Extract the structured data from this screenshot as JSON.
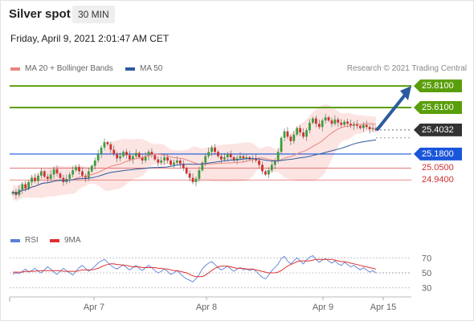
{
  "header": {
    "title": "Silver spot",
    "timeframe": "30 MIN",
    "datetime": "Friday, April 9, 2021 2:01:47 AM CET"
  },
  "legend": {
    "ma20_label": "MA 20 + Bollinger Bands",
    "ma50_label": "MA 50",
    "copyright": "Research © 2021 Trading Central"
  },
  "rsi_legend": {
    "rsi_label": "RSI",
    "ma9_label": "9MA"
  },
  "colors": {
    "target": "#5a9e0b",
    "current": "#333333",
    "pivot": "#1a56db",
    "support": "#e06666",
    "ma20": "#e8867f",
    "ma50": "#2c5a9e",
    "rsi": "#5b7fd6",
    "ma9": "#e03030",
    "bull": "#3b9e3b",
    "bear": "#d03030",
    "arrow": "#2c5a9e"
  },
  "chart_data": {
    "type": "candlestick",
    "title": "Silver spot",
    "timeframe": "30 MIN",
    "price_levels": [
      {
        "label": "25.8100",
        "value": 25.81,
        "kind": "target"
      },
      {
        "label": "25.6100",
        "value": 25.61,
        "kind": "target"
      },
      {
        "label": "25.4032",
        "value": 25.4032,
        "kind": "current"
      },
      {
        "label": "25.1800",
        "value": 25.18,
        "kind": "pivot"
      },
      {
        "label": "25.0500",
        "value": 25.05,
        "kind": "support"
      },
      {
        "label": "24.9400",
        "value": 24.94,
        "kind": "support"
      }
    ],
    "x_ticks": [
      "Apr 7",
      "Apr 8",
      "Apr 9",
      "Apr 15"
    ],
    "x_tick_pos": [
      0.21,
      0.49,
      0.78,
      0.93
    ],
    "ylim": [
      24.6,
      25.9
    ],
    "series_close": [
      24.83,
      24.8,
      24.85,
      24.9,
      24.86,
      24.92,
      24.96,
      24.93,
      24.98,
      25.02,
      24.97,
      24.95,
      24.99,
      25.04,
      25.0,
      24.96,
      24.92,
      24.95,
      24.99,
      25.03,
      25.06,
      25.02,
      24.98,
      24.96,
      25.02,
      25.07,
      25.12,
      25.18,
      25.24,
      25.29,
      25.27,
      25.22,
      25.18,
      25.14,
      25.16,
      25.2,
      25.17,
      25.13,
      25.16,
      25.19,
      25.15,
      25.12,
      25.16,
      25.2,
      25.17,
      25.13,
      25.1,
      25.12,
      25.15,
      25.12,
      25.08,
      25.1,
      25.12,
      25.09,
      25.05,
      25.0,
      24.96,
      24.92,
      24.95,
      25.03,
      25.1,
      25.16,
      25.2,
      25.24,
      25.2,
      25.16,
      25.13,
      25.15,
      25.18,
      25.15,
      25.12,
      25.14,
      25.16,
      25.14,
      25.15,
      25.13,
      25.14,
      25.12,
      25.08,
      25.02,
      24.99,
      25.03,
      25.08,
      25.12,
      25.2,
      25.33,
      25.39,
      25.34,
      25.3,
      25.36,
      25.42,
      25.38,
      25.34,
      25.4,
      25.47,
      25.51,
      25.46,
      25.43,
      25.49,
      25.52,
      25.49,
      25.46,
      25.5,
      25.47,
      25.45,
      25.48,
      25.46,
      25.44,
      25.46,
      25.44,
      25.42,
      25.45,
      25.43,
      25.41,
      25.42,
      25.4
    ],
    "rsi": {
      "levels": [
        70,
        50,
        30
      ],
      "ylim": [
        20,
        80
      ],
      "values": [
        48,
        50,
        49,
        52,
        55,
        51,
        53,
        56,
        52,
        50,
        54,
        58,
        55,
        51,
        48,
        52,
        56,
        53,
        50,
        47,
        52,
        57,
        60,
        56,
        52,
        55,
        59,
        63,
        66,
        68,
        64,
        60,
        57,
        55,
        58,
        61,
        57,
        54,
        57,
        60,
        56,
        53,
        57,
        60,
        57,
        53,
        50,
        52,
        55,
        52,
        48,
        50,
        53,
        49,
        45,
        42,
        40,
        38,
        42,
        48,
        55,
        60,
        63,
        65,
        61,
        57,
        54,
        56,
        59,
        55,
        52,
        55,
        57,
        54,
        55,
        53,
        55,
        52,
        48,
        44,
        42,
        47,
        53,
        57,
        62,
        69,
        72,
        66,
        62,
        66,
        70,
        66,
        62,
        67,
        71,
        73,
        68,
        64,
        67,
        69,
        66,
        63,
        66,
        62,
        60,
        64,
        61,
        58,
        60,
        57,
        54,
        57,
        54,
        51,
        53,
        50
      ]
    },
    "rsi_ma9": [
      51,
      51,
      51,
      51,
      52,
      52,
      52,
      52,
      53,
      53,
      53,
      53,
      53,
      53,
      53,
      53,
      52,
      52,
      52,
      52,
      52,
      53,
      54,
      54,
      54,
      54,
      55,
      56,
      58,
      60,
      61,
      62,
      62,
      61,
      61,
      60,
      60,
      59,
      58,
      58,
      58,
      57,
      57,
      57,
      57,
      57,
      56,
      56,
      55,
      55,
      54,
      53,
      53,
      52,
      51,
      50,
      48,
      46,
      45,
      45,
      45,
      47,
      50,
      53,
      56,
      58,
      59,
      59,
      59,
      58,
      57,
      56,
      56,
      56,
      55,
      55,
      55,
      54,
      53,
      52,
      51,
      50,
      50,
      50,
      51,
      53,
      56,
      59,
      61,
      63,
      65,
      66,
      66,
      66,
      66,
      67,
      68,
      68,
      68,
      68,
      68,
      68,
      67,
      66,
      65,
      65,
      64,
      63,
      62,
      61,
      60,
      59,
      58,
      57,
      56,
      55
    ]
  }
}
